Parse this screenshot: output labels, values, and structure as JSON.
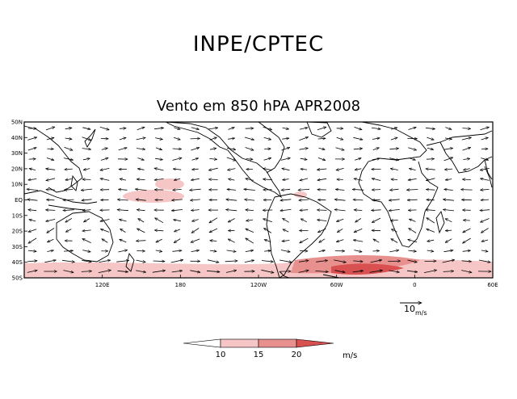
{
  "header": {
    "organization": "INPE/CPTEC",
    "title": "Vento em 850 hPA APR2008"
  },
  "map": {
    "variable": "Vento em 850 hPA",
    "period": "APR2008",
    "lat_range": [
      -50,
      50
    ],
    "lon_range": [
      60,
      420
    ],
    "lat_ticks": [
      "50N",
      "40N",
      "30N",
      "20N",
      "10N",
      "EQ",
      "10S",
      "20S",
      "30S",
      "40S",
      "50S"
    ],
    "lon_ticks": [
      "120E",
      "180",
      "120W",
      "60W",
      "0",
      "60E"
    ],
    "reference_vector": {
      "value": "10",
      "unit": "m/s"
    }
  },
  "legend": {
    "levels": [
      "10",
      "15",
      "20"
    ],
    "unit": "m/s",
    "colors": [
      "#ffffff",
      "#f6c6c6",
      "#e8908e",
      "#d85050"
    ]
  }
}
